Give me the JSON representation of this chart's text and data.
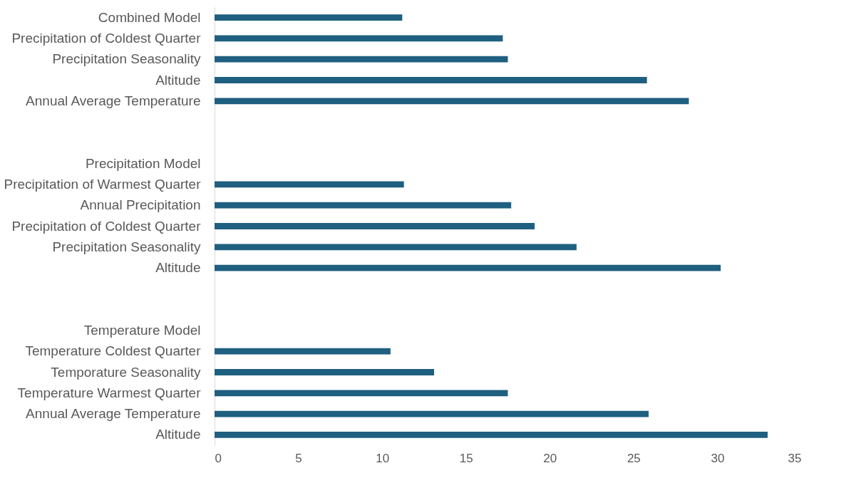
{
  "chart_data": {
    "type": "bar",
    "orientation": "horizontal",
    "color": "#1f5f80",
    "categories": [
      "Combined Model",
      "Precipitation of Coldest Quarter",
      "Precipitation Seasonality",
      "Altitude",
      "Annual Average Temperature",
      null,
      null,
      "Precipitation Model",
      "Precipitation of Warmest Quarter",
      "Annual Precipitation",
      "Precipitation of Coldest Quarter",
      "Precipitation Seasonality",
      "Altitude",
      null,
      null,
      "Temperature Model",
      "Temperature Coldest Quarter",
      "Temporature Seasonality",
      "Temperature Warmest Quarter",
      "Annual Average Temperature",
      "Altitude"
    ],
    "values": [
      11.2,
      17.2,
      17.5,
      25.8,
      28.3,
      null,
      null,
      null,
      11.3,
      17.7,
      19.1,
      21.6,
      30.2,
      null,
      null,
      null,
      10.5,
      13.1,
      17.5,
      25.9,
      33.0
    ],
    "xlim": [
      0,
      35
    ],
    "xticks": [
      0,
      5,
      10,
      15,
      20,
      25,
      30,
      35
    ],
    "grid": false
  }
}
